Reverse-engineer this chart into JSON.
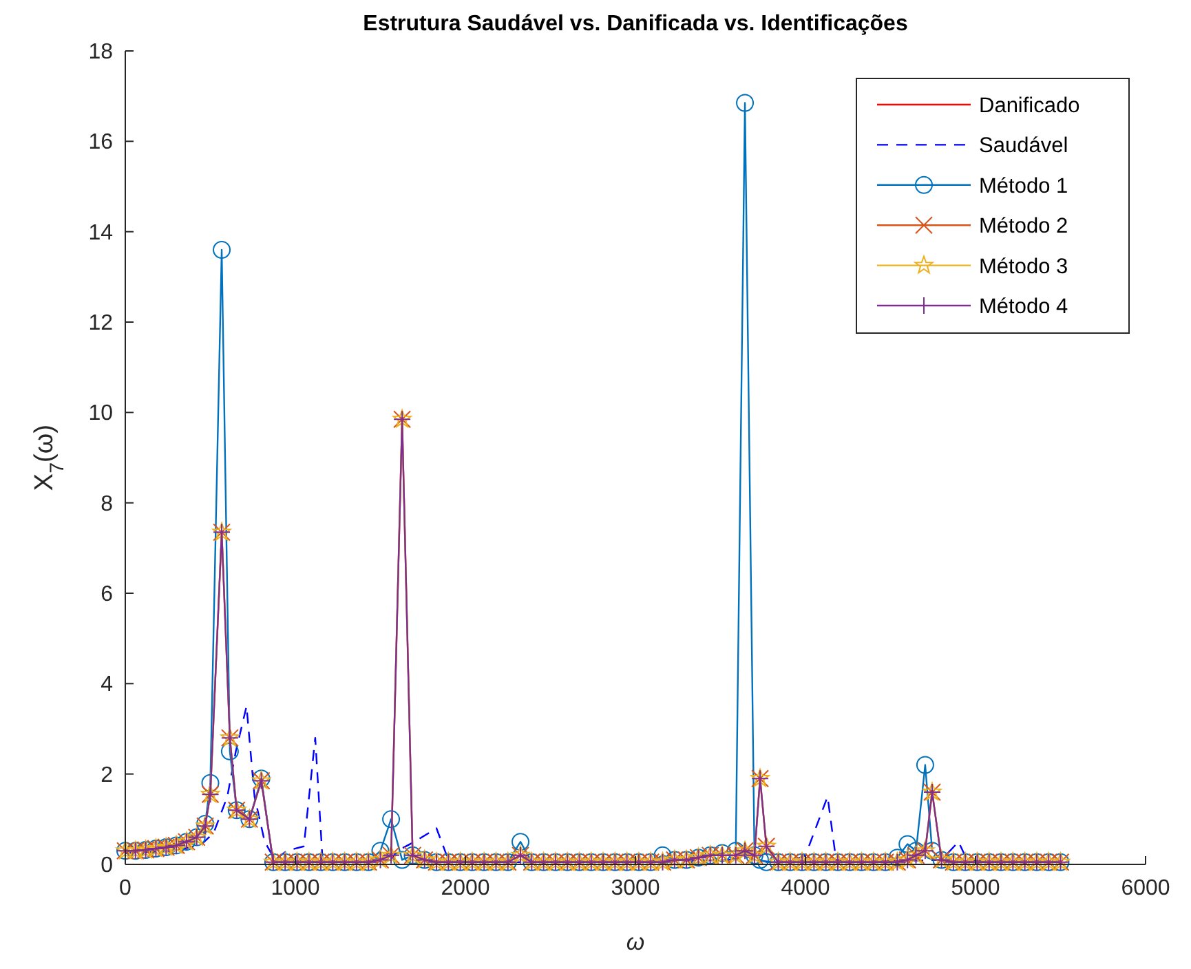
{
  "chart_data": {
    "type": "line",
    "title": "Estrutura Saudável vs. Danificada vs. Identificações",
    "xlabel": "ω",
    "ylabel": "X$_{7}$(ω)",
    "x": [
      0,
      60,
      120,
      180,
      240,
      300,
      360,
      420,
      470,
      500,
      567,
      615,
      655,
      730,
      800,
      870,
      940,
      1010,
      1080,
      1150,
      1220,
      1290,
      1360,
      1430,
      1500,
      1563,
      1628,
      1690,
      1760,
      1830,
      1900,
      1970,
      2040,
      2110,
      2180,
      2250,
      2324,
      2390,
      2460,
      2530,
      2600,
      2670,
      2740,
      2810,
      2880,
      2950,
      3020,
      3090,
      3160,
      3230,
      3300,
      3370,
      3440,
      3510,
      3590,
      3644,
      3700,
      3733,
      3770,
      3840,
      3910,
      3980,
      4050,
      4120,
      4190,
      4260,
      4330,
      4400,
      4470,
      4540,
      4600,
      4650,
      4704,
      4745,
      4800,
      4870,
      4940,
      5010,
      5080,
      5150,
      5220,
      5290,
      5360,
      5430,
      5500
    ],
    "xlim": [
      0,
      6000
    ],
    "xticks": [
      0,
      1000,
      2000,
      3000,
      4000,
      5000,
      6000
    ],
    "ylim": [
      0,
      18
    ],
    "yticks": [
      0,
      2,
      4,
      6,
      8,
      10,
      12,
      14,
      16,
      18
    ],
    "grid": false,
    "legend": "top right",
    "series": [
      {
        "name": "Danificado",
        "color": "#ff0000",
        "marker": "none",
        "line_style": "solid",
        "values": [
          null,
          null,
          null,
          null,
          null,
          null,
          null,
          null,
          null,
          null,
          null,
          null,
          null,
          null,
          null,
          null,
          null,
          null,
          null,
          null,
          null,
          null,
          null,
          null,
          null,
          null,
          null,
          null,
          null,
          null,
          null,
          null,
          null,
          null,
          null,
          null,
          null,
          null,
          null,
          null,
          null,
          null,
          null,
          null,
          null,
          null,
          null,
          null,
          null,
          null,
          null,
          null,
          null,
          null,
          null,
          null,
          null,
          null,
          null,
          null,
          null,
          null,
          null,
          null,
          null,
          null,
          null,
          null,
          null,
          null,
          null,
          null,
          null,
          null,
          null,
          null,
          null,
          null,
          null,
          null,
          null,
          null,
          null,
          null,
          null
        ]
      },
      {
        "name": "Saudável",
        "color": "#0000ff",
        "marker": "none",
        "line_style": "dashed",
        "x": [
          0,
          300,
          450,
          520,
          600,
          650,
          713,
          760,
          820,
          880,
          950,
          1050,
          1117,
          1160,
          1250,
          1450,
          1560,
          1600,
          1700,
          1830,
          1900,
          2000,
          2300,
          3000,
          3550,
          3640,
          3700,
          3800,
          3900,
          4000,
          4130,
          4180,
          4300,
          4800,
          4900,
          4950,
          5100,
          5500
        ],
        "values": [
          0.25,
          0.3,
          0.45,
          0.7,
          1.5,
          2.5,
          3.5,
          1.5,
          0.5,
          0.1,
          0.3,
          0.4,
          2.8,
          0.1,
          0.05,
          0.05,
          0.1,
          0.3,
          0.5,
          0.8,
          0.1,
          0.05,
          0.05,
          0.05,
          0.1,
          0.2,
          0.1,
          0.05,
          0.05,
          0.2,
          1.5,
          0.1,
          0.05,
          0.1,
          0.5,
          0.1,
          0.05,
          0.05
        ]
      },
      {
        "name": "Método 1",
        "color": "#0072bd",
        "marker": "circle",
        "line_style": "solid",
        "values": [
          0.3,
          0.3,
          0.32,
          0.35,
          0.38,
          0.42,
          0.5,
          0.6,
          0.9,
          1.8,
          13.6,
          2.5,
          1.2,
          1.0,
          1.9,
          0.05,
          0.05,
          0.05,
          0.05,
          0.05,
          0.05,
          0.05,
          0.05,
          0.05,
          0.3,
          1.0,
          0.1,
          0.2,
          0.1,
          0.05,
          0.05,
          0.05,
          0.05,
          0.05,
          0.05,
          0.05,
          0.5,
          0.05,
          0.05,
          0.05,
          0.05,
          0.05,
          0.05,
          0.05,
          0.05,
          0.05,
          0.05,
          0.05,
          0.2,
          0.1,
          0.1,
          0.15,
          0.2,
          0.25,
          0.3,
          16.85,
          0.2,
          0.1,
          0.05,
          0.05,
          0.05,
          0.05,
          0.05,
          0.05,
          0.05,
          0.05,
          0.05,
          0.05,
          0.05,
          0.15,
          0.45,
          0.3,
          2.2,
          0.3,
          0.1,
          0.05,
          0.05,
          0.05,
          0.05,
          0.05,
          0.05,
          0.05,
          0.05,
          0.05,
          0.05
        ]
      },
      {
        "name": "Método 2",
        "color": "#d95319",
        "marker": "cross",
        "line_style": "solid",
        "values": [
          0.3,
          0.3,
          0.32,
          0.35,
          0.38,
          0.42,
          0.5,
          0.6,
          0.85,
          1.55,
          7.35,
          2.8,
          1.2,
          1.0,
          1.85,
          0.05,
          0.05,
          0.05,
          0.05,
          0.05,
          0.05,
          0.05,
          0.05,
          0.05,
          0.1,
          0.2,
          9.85,
          0.2,
          0.1,
          0.05,
          0.05,
          0.05,
          0.05,
          0.05,
          0.05,
          0.05,
          0.2,
          0.05,
          0.05,
          0.05,
          0.05,
          0.05,
          0.05,
          0.05,
          0.05,
          0.05,
          0.05,
          0.05,
          0.05,
          0.1,
          0.1,
          0.15,
          0.2,
          0.2,
          0.2,
          0.3,
          0.2,
          1.9,
          0.4,
          0.05,
          0.05,
          0.05,
          0.05,
          0.05,
          0.05,
          0.05,
          0.05,
          0.05,
          0.05,
          0.05,
          0.1,
          0.2,
          0.3,
          1.6,
          0.1,
          0.05,
          0.05,
          0.05,
          0.05,
          0.05,
          0.05,
          0.05,
          0.05,
          0.05,
          0.05
        ]
      },
      {
        "name": "Método 3",
        "color": "#edb120",
        "marker": "star",
        "line_style": "solid",
        "values": [
          0.3,
          0.3,
          0.32,
          0.35,
          0.38,
          0.42,
          0.5,
          0.6,
          0.85,
          1.55,
          7.35,
          2.8,
          1.2,
          1.0,
          1.85,
          0.05,
          0.05,
          0.05,
          0.05,
          0.05,
          0.05,
          0.05,
          0.05,
          0.05,
          0.1,
          0.2,
          9.85,
          0.2,
          0.1,
          0.05,
          0.05,
          0.05,
          0.05,
          0.05,
          0.05,
          0.05,
          0.2,
          0.05,
          0.05,
          0.05,
          0.05,
          0.05,
          0.05,
          0.05,
          0.05,
          0.05,
          0.05,
          0.05,
          0.05,
          0.1,
          0.1,
          0.15,
          0.2,
          0.2,
          0.2,
          0.3,
          0.2,
          1.9,
          0.4,
          0.05,
          0.05,
          0.05,
          0.05,
          0.05,
          0.05,
          0.05,
          0.05,
          0.05,
          0.05,
          0.05,
          0.1,
          0.2,
          0.3,
          1.6,
          0.1,
          0.05,
          0.05,
          0.05,
          0.05,
          0.05,
          0.05,
          0.05,
          0.05,
          0.05,
          0.05
        ]
      },
      {
        "name": "Método 4",
        "color": "#7e2f8e",
        "marker": "plus",
        "line_style": "solid",
        "values": [
          0.3,
          0.3,
          0.32,
          0.35,
          0.38,
          0.42,
          0.5,
          0.6,
          0.85,
          1.55,
          7.35,
          2.8,
          1.2,
          1.0,
          1.85,
          0.05,
          0.05,
          0.05,
          0.05,
          0.05,
          0.05,
          0.05,
          0.05,
          0.05,
          0.1,
          0.2,
          9.85,
          0.2,
          0.1,
          0.05,
          0.05,
          0.05,
          0.05,
          0.05,
          0.05,
          0.05,
          0.2,
          0.05,
          0.05,
          0.05,
          0.05,
          0.05,
          0.05,
          0.05,
          0.05,
          0.05,
          0.05,
          0.05,
          0.05,
          0.1,
          0.1,
          0.15,
          0.2,
          0.2,
          0.2,
          0.3,
          0.2,
          1.9,
          0.4,
          0.05,
          0.05,
          0.05,
          0.05,
          0.05,
          0.05,
          0.05,
          0.05,
          0.05,
          0.05,
          0.05,
          0.1,
          0.2,
          0.3,
          1.6,
          0.1,
          0.05,
          0.05,
          0.05,
          0.05,
          0.05,
          0.05,
          0.05,
          0.05,
          0.05,
          0.05
        ]
      }
    ]
  }
}
